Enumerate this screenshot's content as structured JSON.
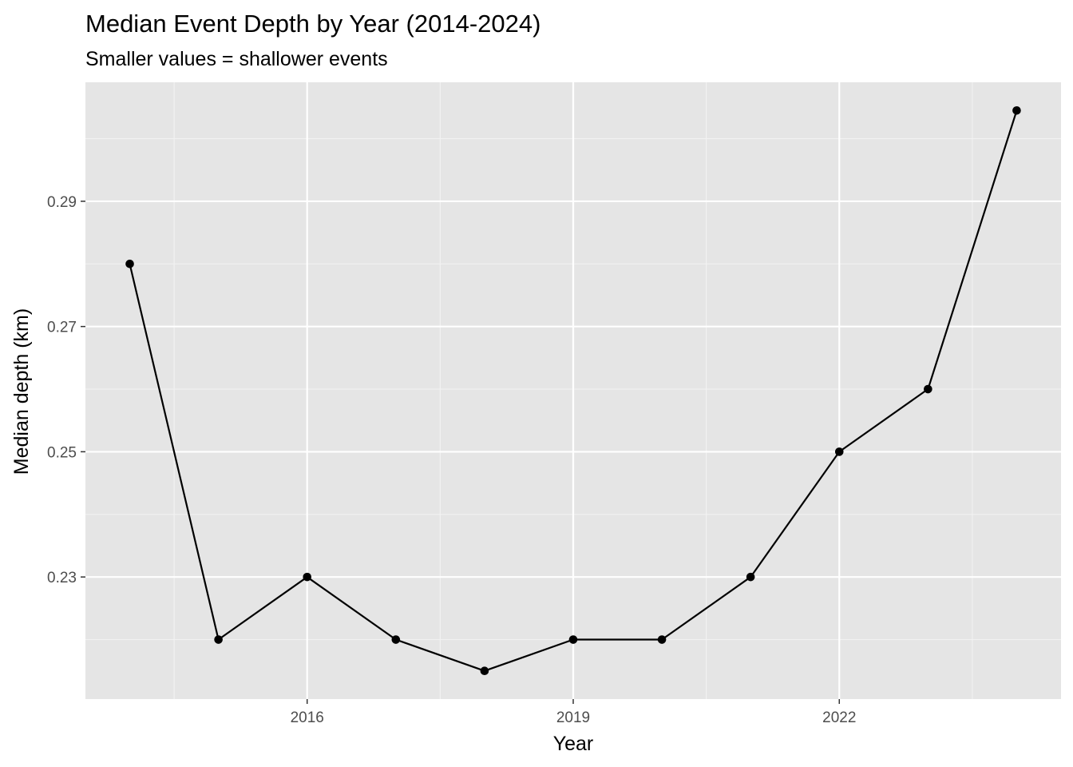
{
  "chart_data": {
    "type": "line",
    "title": "Median Event Depth by Year (2014-2024)",
    "subtitle": "Smaller values = shallower events",
    "xlabel": "Year",
    "ylabel": "Median depth (km)",
    "x": [
      2014,
      2015,
      2016,
      2017,
      2018,
      2019,
      2020,
      2021,
      2022,
      2023,
      2024
    ],
    "series": [
      {
        "values": [
          0.28,
          0.22,
          0.23,
          0.22,
          0.215,
          0.22,
          0.22,
          0.23,
          0.25,
          0.26,
          0.3045
        ]
      }
    ],
    "x_ticks": [
      2016,
      2019,
      2022
    ],
    "x_tick_labels": [
      "2016",
      "2019",
      "2022"
    ],
    "y_ticks": [
      0.23,
      0.25,
      0.27,
      0.29
    ],
    "y_tick_labels": [
      "0.23",
      "0.25",
      "0.27",
      "0.29"
    ],
    "xlim": [
      2013.5,
      2024.5
    ],
    "ylim": [
      0.2105,
      0.309
    ],
    "grid": true,
    "legend": "none",
    "colors": {
      "panel_background": "#e5e5e5",
      "grid_major": "#ffffff",
      "grid_minor": "#f2f2f2",
      "line": "#000000",
      "point": "#000000",
      "tick_text": "#4d4d4d",
      "tick_mark": "#333333"
    }
  }
}
